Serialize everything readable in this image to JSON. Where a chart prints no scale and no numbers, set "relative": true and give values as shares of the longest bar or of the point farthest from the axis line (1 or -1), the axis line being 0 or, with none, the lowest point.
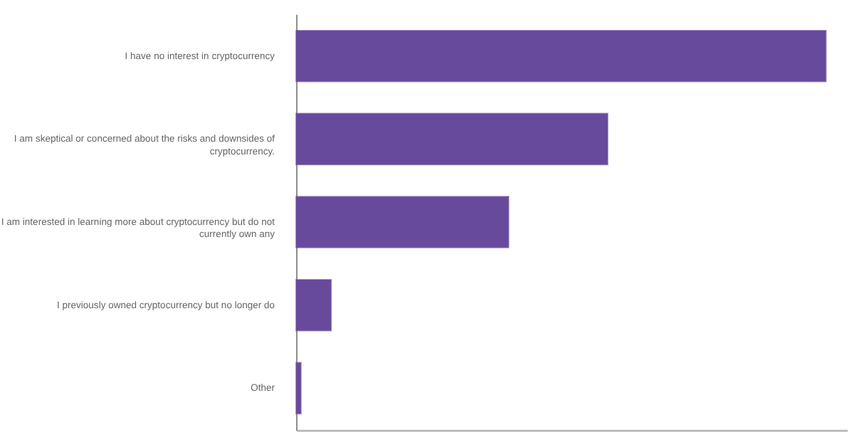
{
  "chart_data": {
    "type": "bar",
    "orientation": "horizontal",
    "relative": true,
    "categories": [
      "I have no interest in cryptocurrency",
      "I am skeptical or concerned about the risks and downsides of cryptocurrency.",
      "I am interested in learning more about cryptocurrency but do not currently own any",
      "I previously owned cryptocurrency but no longer do",
      "Other"
    ],
    "values": [
      1,
      0.588,
      0.401,
      0.066,
      0.009
    ],
    "color": "#674a9c",
    "grid": false
  }
}
